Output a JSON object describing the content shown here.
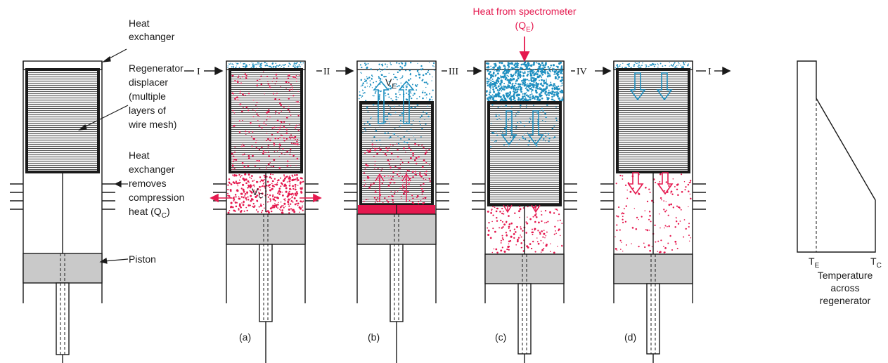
{
  "colors": {
    "hot": "#e5194f",
    "cold": "#1e8fc0",
    "piston": "#c9c9c9",
    "line": "#1a1a1a"
  },
  "labels": {
    "heat_exchanger_top": [
      "Heat",
      "exchanger"
    ],
    "regenerator": [
      "Regenerator",
      "displacer",
      "(multiple",
      "layers of",
      "wire mesh)"
    ],
    "heat_exchanger_bottom": [
      "Heat",
      "exchanger",
      "removes",
      "compression",
      "heat (Q",
      "C",
      ")"
    ],
    "piston": "Piston",
    "heat_from": "Heat from spectrometer",
    "q_e": [
      "(Q",
      "E",
      ")"
    ]
  },
  "stages": {
    "steps": [
      "I",
      "II",
      "III",
      "IV",
      "I"
    ],
    "captions": [
      "(a)",
      "(b)",
      "(c)",
      "(d)"
    ],
    "vc": [
      "V",
      "C"
    ],
    "ve": [
      "V",
      "E"
    ]
  },
  "temperature": {
    "te": [
      "T",
      "E"
    ],
    "tc": [
      "T",
      "C"
    ],
    "caption": [
      "Temperature",
      "across",
      "regenerator"
    ]
  }
}
